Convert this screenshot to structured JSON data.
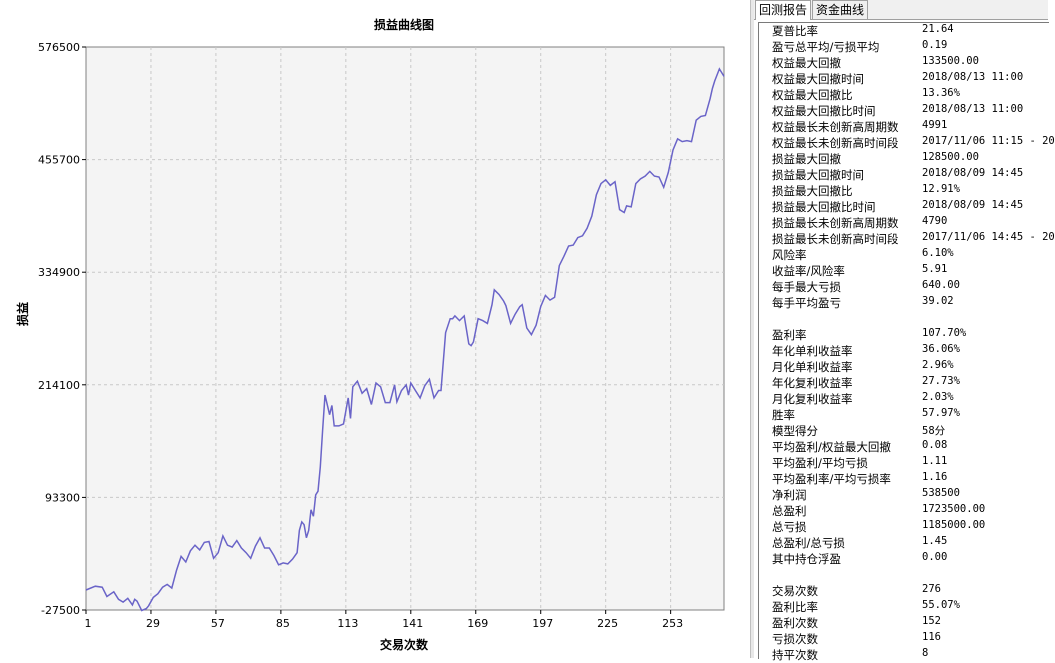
{
  "chart_data": {
    "type": "line",
    "title": "损益曲线图",
    "xlabel": "交易次数",
    "ylabel": "损益",
    "xlim": [
      1,
      276
    ],
    "ylim": [
      -27500,
      576500
    ],
    "x_ticks": [
      "1",
      "29",
      "57",
      "85",
      "113",
      "141",
      "169",
      "197",
      "225",
      "253"
    ],
    "y_ticks": [
      "576500",
      "455700",
      "334900",
      "214100",
      "93300",
      "-27500"
    ],
    "grid": true,
    "line_color": "#6a64c8",
    "series": [
      {
        "points": [
          [
            1,
            -6000
          ],
          [
            5,
            -2000
          ],
          [
            8,
            -3000
          ],
          [
            10,
            -13000
          ],
          [
            13,
            -8000
          ],
          [
            15,
            -16000
          ],
          [
            17,
            -19000
          ],
          [
            19,
            -15000
          ],
          [
            21,
            -22000
          ],
          [
            22,
            -16000
          ],
          [
            23,
            -18000
          ],
          [
            25,
            -28000
          ],
          [
            27,
            -26000
          ],
          [
            28,
            -23000
          ],
          [
            30,
            -14000
          ],
          [
            32,
            -10000
          ],
          [
            34,
            -3000
          ],
          [
            36,
            0
          ],
          [
            38,
            -4000
          ],
          [
            40,
            15000
          ],
          [
            42,
            30000
          ],
          [
            44,
            24000
          ],
          [
            46,
            36000
          ],
          [
            48,
            42000
          ],
          [
            50,
            37000
          ],
          [
            52,
            45000
          ],
          [
            54,
            46000
          ],
          [
            56,
            28000
          ],
          [
            58,
            34000
          ],
          [
            60,
            52000
          ],
          [
            62,
            42000
          ],
          [
            64,
            40000
          ],
          [
            66,
            47000
          ],
          [
            68,
            39000
          ],
          [
            70,
            34000
          ],
          [
            72,
            28000
          ],
          [
            74,
            41000
          ],
          [
            76,
            50000
          ],
          [
            78,
            39000
          ],
          [
            80,
            39000
          ],
          [
            82,
            31000
          ],
          [
            84,
            21000
          ],
          [
            86,
            23000
          ],
          [
            88,
            22000
          ],
          [
            90,
            27000
          ],
          [
            92,
            34000
          ],
          [
            93,
            58000
          ],
          [
            94,
            67000
          ],
          [
            95,
            64000
          ],
          [
            96,
            50000
          ],
          [
            97,
            58000
          ],
          [
            98,
            80000
          ],
          [
            99,
            73000
          ],
          [
            100,
            96000
          ],
          [
            101,
            100000
          ],
          [
            102,
            126000
          ],
          [
            103,
            165000
          ],
          [
            104,
            203000
          ],
          [
            106,
            182000
          ],
          [
            107,
            192000
          ],
          [
            108,
            170000
          ],
          [
            110,
            170000
          ],
          [
            112,
            172000
          ],
          [
            114,
            200000
          ],
          [
            115,
            178000
          ],
          [
            116,
            212000
          ],
          [
            118,
            218000
          ],
          [
            120,
            205000
          ],
          [
            122,
            210000
          ],
          [
            124,
            193000
          ],
          [
            126,
            216000
          ],
          [
            128,
            212000
          ],
          [
            130,
            195000
          ],
          [
            132,
            195000
          ],
          [
            134,
            214000
          ],
          [
            135,
            196000
          ],
          [
            137,
            208000
          ],
          [
            139,
            214000
          ],
          [
            140,
            203000
          ],
          [
            141,
            216000
          ],
          [
            143,
            208000
          ],
          [
            145,
            200000
          ],
          [
            147,
            213000
          ],
          [
            149,
            220000
          ],
          [
            151,
            200000
          ],
          [
            153,
            208000
          ],
          [
            154,
            208000
          ],
          [
            156,
            270000
          ],
          [
            158,
            285000
          ],
          [
            159,
            285000
          ],
          [
            160,
            288000
          ],
          [
            162,
            283000
          ],
          [
            164,
            288000
          ],
          [
            166,
            258000
          ],
          [
            167,
            256000
          ],
          [
            168,
            260000
          ],
          [
            170,
            285000
          ],
          [
            172,
            283000
          ],
          [
            174,
            280000
          ],
          [
            176,
            300000
          ],
          [
            177,
            316000
          ],
          [
            179,
            311000
          ],
          [
            181,
            304000
          ],
          [
            182,
            299000
          ],
          [
            184,
            280000
          ],
          [
            185,
            285000
          ],
          [
            186,
            290000
          ],
          [
            188,
            298000
          ],
          [
            189,
            300000
          ],
          [
            191,
            275000
          ],
          [
            193,
            268000
          ],
          [
            195,
            278000
          ],
          [
            197,
            298000
          ],
          [
            199,
            310000
          ],
          [
            201,
            305000
          ],
          [
            203,
            308000
          ],
          [
            205,
            342000
          ],
          [
            207,
            352000
          ],
          [
            209,
            363000
          ],
          [
            211,
            364000
          ],
          [
            213,
            372000
          ],
          [
            215,
            374000
          ],
          [
            217,
            382000
          ],
          [
            219,
            395000
          ],
          [
            221,
            418000
          ],
          [
            223,
            430000
          ],
          [
            225,
            434000
          ],
          [
            227,
            428000
          ],
          [
            229,
            432000
          ],
          [
            231,
            402000
          ],
          [
            233,
            399000
          ],
          [
            234,
            406000
          ],
          [
            236,
            405000
          ],
          [
            238,
            430000
          ],
          [
            240,
            435000
          ],
          [
            242,
            438000
          ],
          [
            244,
            443000
          ],
          [
            246,
            438000
          ],
          [
            248,
            437000
          ],
          [
            250,
            426000
          ],
          [
            252,
            442000
          ],
          [
            254,
            466000
          ],
          [
            256,
            478000
          ],
          [
            258,
            475000
          ],
          [
            260,
            476000
          ],
          [
            262,
            475000
          ],
          [
            264,
            498000
          ],
          [
            266,
            502000
          ],
          [
            268,
            503000
          ],
          [
            270,
            521000
          ],
          [
            271,
            532000
          ],
          [
            272,
            540000
          ],
          [
            274,
            553000
          ],
          [
            275,
            549000
          ],
          [
            276,
            545000
          ]
        ]
      }
    ]
  },
  "tabs": [
    "回测报告",
    "资金曲线"
  ],
  "report": [
    {
      "k": "夏普比率",
      "v": "21.64"
    },
    {
      "k": "盈亏总平均/亏损平均",
      "v": "0.19"
    },
    {
      "k": "权益最大回撤",
      "v": "133500.00"
    },
    {
      "k": "权益最大回撤时间",
      "v": "2018/08/13 11:00"
    },
    {
      "k": "权益最大回撤比",
      "v": "13.36%"
    },
    {
      "k": "权益最大回撤比时间",
      "v": "2018/08/13 11:00"
    },
    {
      "k": "权益最长未创新高周期数",
      "v": "4991"
    },
    {
      "k": "权益最长未创新高时间段",
      "v": "2017/11/06 11:15 - 20"
    },
    {
      "k": "损益最大回撤",
      "v": "128500.00"
    },
    {
      "k": "损益最大回撤时间",
      "v": "2018/08/09 14:45"
    },
    {
      "k": "损益最大回撤比",
      "v": "12.91%"
    },
    {
      "k": "损益最大回撤比时间",
      "v": "2018/08/09 14:45"
    },
    {
      "k": "损益最长未创新高周期数",
      "v": "4790"
    },
    {
      "k": "损益最长未创新高时间段",
      "v": "2017/11/06 14:45 - 20"
    },
    {
      "k": "风险率",
      "v": "6.10%"
    },
    {
      "k": "收益率/风险率",
      "v": "5.91"
    },
    {
      "k": "每手最大亏损",
      "v": "640.00"
    },
    {
      "k": "每手平均盈亏",
      "v": "39.02"
    },
    {
      "k": "",
      "v": ""
    },
    {
      "k": "盈利率",
      "v": "107.70%"
    },
    {
      "k": "年化单利收益率",
      "v": "36.06%"
    },
    {
      "k": "月化单利收益率",
      "v": "2.96%"
    },
    {
      "k": "年化复利收益率",
      "v": "27.73%"
    },
    {
      "k": "月化复利收益率",
      "v": "2.03%"
    },
    {
      "k": "胜率",
      "v": "57.97%"
    },
    {
      "k": "模型得分",
      "v": "58分"
    },
    {
      "k": "平均盈利/权益最大回撤",
      "v": "0.08"
    },
    {
      "k": "平均盈利/平均亏损",
      "v": "1.11"
    },
    {
      "k": "平均盈利率/平均亏损率",
      "v": "1.16"
    },
    {
      "k": "净利润",
      "v": "538500"
    },
    {
      "k": "总盈利",
      "v": "1723500.00"
    },
    {
      "k": "总亏损",
      "v": "1185000.00"
    },
    {
      "k": "总盈利/总亏损",
      "v": "1.45"
    },
    {
      "k": "其中持仓浮盈",
      "v": "0.00"
    },
    {
      "k": "",
      "v": ""
    },
    {
      "k": "交易次数",
      "v": "276"
    },
    {
      "k": "盈利比率",
      "v": "55.07%"
    },
    {
      "k": "盈利次数",
      "v": "152"
    },
    {
      "k": "亏损次数",
      "v": "116"
    },
    {
      "k": "持平次数",
      "v": "8"
    }
  ]
}
